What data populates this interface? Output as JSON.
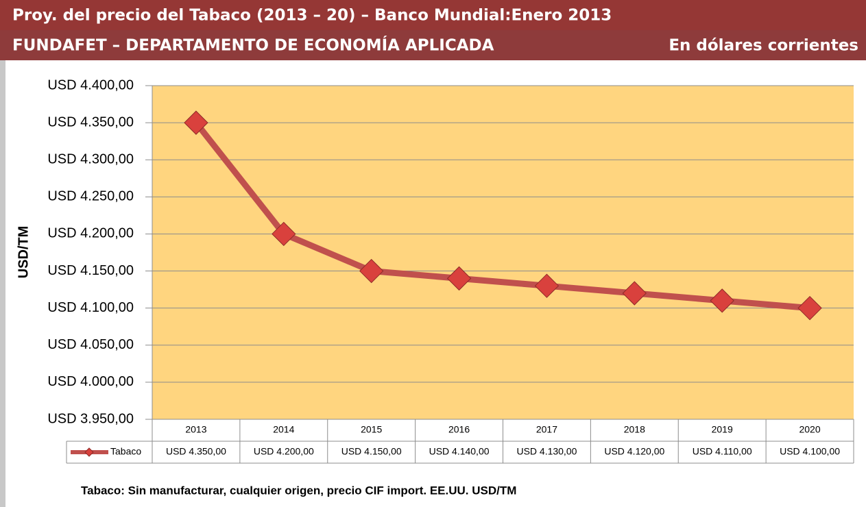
{
  "chart_data": {
    "type": "line",
    "title": "Proy. del precio del Tabaco (2013 – 20) – Banco Mundial:Enero 2013",
    "subtitle": "FUNDAFET – DEPARTAMENTO DE ECONOMÍA APLICADA",
    "unit_note": "En dólares corrientes",
    "y_label": "USD/TM",
    "note": "Tabaco: Sin manufacturar, cualquier origen, precio CIF import. EE.UU. USD/TM",
    "categories": [
      "2013",
      "2014",
      "2015",
      "2016",
      "2017",
      "2018",
      "2019",
      "2020"
    ],
    "series": [
      {
        "name": "Tabaco",
        "color": "#c0504d",
        "values": [
          4350,
          4200,
          4150,
          4140,
          4130,
          4120,
          4110,
          4100
        ],
        "value_labels": [
          "USD 4.350,00",
          "USD 4.200,00",
          "USD 4.150,00",
          "USD 4.140,00",
          "USD 4.130,00",
          "USD 4.120,00",
          "USD 4.110,00",
          "USD 4.100,00"
        ]
      }
    ],
    "ylim": [
      3950,
      4400
    ],
    "yticks": [
      {
        "value": 3950,
        "label": "USD 3.950,00"
      },
      {
        "value": 4000,
        "label": "USD 4.000,00"
      },
      {
        "value": 4050,
        "label": "USD 4.050,00"
      },
      {
        "value": 4100,
        "label": "USD 4.100,00"
      },
      {
        "value": 4150,
        "label": "USD 4.150,00"
      },
      {
        "value": 4200,
        "label": "USD 4.200,00"
      },
      {
        "value": 4250,
        "label": "USD 4.250,00"
      },
      {
        "value": 4300,
        "label": "USD 4.300,00"
      },
      {
        "value": 4350,
        "label": "USD 4.350,00"
      },
      {
        "value": 4400,
        "label": "USD 4.400,00"
      }
    ],
    "grid": true
  }
}
